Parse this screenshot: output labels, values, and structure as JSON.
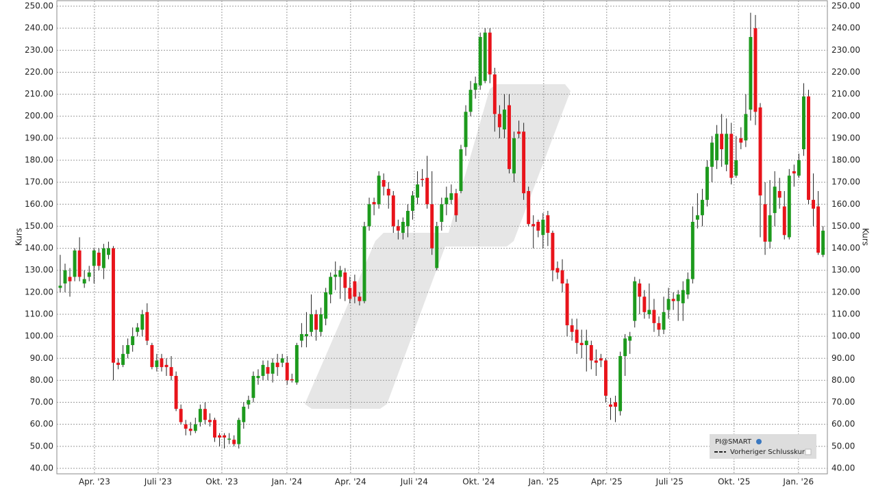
{
  "chart_data": {
    "type": "candlestick",
    "y_label": "Kurs",
    "series_name": "PI@SMART",
    "legend_item": "Vorheriger Schlusskurs",
    "up_color": "#1d9a1d",
    "down_color": "#e8141b",
    "grid": true,
    "xlim": [
      -0.7,
      158.9
    ],
    "xticks": [
      {
        "value": 7.09,
        "label": "Apr. '23"
      },
      {
        "value": 20.28,
        "label": "Juli '23"
      },
      {
        "value": 33.48,
        "label": "Okt. '23"
      },
      {
        "value": 46.95,
        "label": "Jan. '24"
      },
      {
        "value": 60.14,
        "label": "Apr. '24"
      },
      {
        "value": 73.33,
        "label": "Juli '24"
      },
      {
        "value": 86.67,
        "label": "Okt. '24"
      },
      {
        "value": 100.14,
        "label": "Jan. '25"
      },
      {
        "value": 113.19,
        "label": "Apr. '25"
      },
      {
        "value": 126.24,
        "label": "Juli '25"
      },
      {
        "value": 139.57,
        "label": "Okt. '25"
      },
      {
        "value": 152.91,
        "label": "Jan. '26"
      }
    ],
    "ylim": [
      37.5,
      252.5
    ],
    "yticks": [
      {
        "value": 40,
        "label": "40.00"
      },
      {
        "value": 50,
        "label": "50.00"
      },
      {
        "value": 60,
        "label": "60.00"
      },
      {
        "value": 70,
        "label": "70.00"
      },
      {
        "value": 80,
        "label": "80.00"
      },
      {
        "value": 90,
        "label": "90.00"
      },
      {
        "value": 100,
        "label": "100.00"
      },
      {
        "value": 110,
        "label": "110.00"
      },
      {
        "value": 120,
        "label": "120.00"
      },
      {
        "value": 130,
        "label": "130.00"
      },
      {
        "value": 140,
        "label": "140.00"
      },
      {
        "value": 150,
        "label": "150.00"
      },
      {
        "value": 160,
        "label": "160.00"
      },
      {
        "value": 170,
        "label": "170.00"
      },
      {
        "value": 180,
        "label": "180.00"
      },
      {
        "value": 190,
        "label": "190.00"
      },
      {
        "value": 200,
        "label": "200.00"
      },
      {
        "value": 210,
        "label": "210.00"
      },
      {
        "value": 220,
        "label": "220.00"
      },
      {
        "value": 230,
        "label": "230.00"
      },
      {
        "value": 240,
        "label": "240.00"
      },
      {
        "value": 250,
        "label": "250.00"
      }
    ],
    "open": [
      122,
      124,
      127,
      127,
      139,
      124,
      127,
      132,
      138,
      131,
      137,
      140,
      88,
      87,
      92,
      96,
      102,
      103,
      111,
      96,
      86,
      90,
      87,
      86,
      82,
      67,
      60,
      58,
      57,
      61,
      67,
      62,
      62,
      55,
      55,
      53,
      53,
      51,
      61,
      69,
      72,
      81,
      82,
      86,
      83,
      88,
      88,
      88,
      80.5,
      79,
      98,
      100,
      102,
      110,
      102,
      108,
      119,
      127,
      127,
      129,
      122,
      125,
      118,
      116,
      150,
      161,
      160,
      171,
      167,
      164,
      150,
      147,
      150,
      157,
      163,
      171.5,
      172,
      160,
      131,
      152,
      160,
      162,
      165,
      166,
      186,
      202,
      212,
      214,
      216,
      238,
      219,
      201,
      194,
      205,
      174,
      193,
      193,
      166,
      151,
      152,
      146,
      155,
      147,
      131,
      130,
      124,
      105,
      103,
      97,
      96,
      96,
      89,
      90,
      89,
      69,
      70,
      66,
      91,
      98,
      107,
      124,
      118,
      110,
      112,
      106,
      103,
      112,
      117,
      116,
      115,
      119,
      126,
      153,
      155,
      162,
      177,
      180,
      192,
      178,
      192,
      173,
      190,
      189,
      203,
      240,
      204,
      160,
      143,
      156,
      166,
      159,
      145,
      175,
      173,
      185,
      209,
      162,
      159,
      137
    ],
    "high": [
      137,
      133,
      131,
      140,
      145,
      130,
      132,
      140,
      140,
      142,
      143,
      141,
      90,
      96,
      99,
      104,
      106,
      112,
      115,
      97,
      92,
      92,
      90,
      91,
      84,
      69,
      62,
      61,
      63,
      69,
      70,
      65,
      63,
      56,
      56,
      56,
      55,
      63,
      70,
      73,
      84,
      85,
      89,
      89,
      90,
      92,
      92,
      91,
      83,
      97,
      106,
      111,
      119,
      112,
      113,
      122,
      129,
      134,
      132,
      131,
      127,
      128,
      120,
      152,
      163,
      163,
      175,
      174,
      170,
      166,
      153,
      154,
      160,
      166,
      175,
      176,
      182,
      175,
      152,
      163,
      168,
      169,
      167,
      187,
      205,
      216,
      218,
      238,
      240,
      240,
      222,
      205,
      210,
      210,
      193,
      198,
      197,
      168,
      155,
      153,
      156,
      157,
      148,
      134,
      135,
      126,
      108,
      108,
      103,
      103,
      98,
      94,
      92,
      90,
      72,
      73,
      93,
      101,
      102,
      127,
      126,
      121,
      124,
      117,
      109,
      118,
      122,
      120,
      121,
      125,
      129,
      159,
      165,
      167,
      180,
      191,
      196,
      201,
      199,
      197,
      191,
      195,
      210,
      247,
      246,
      206,
      170,
      171,
      175,
      172,
      166,
      176,
      178,
      183,
      215,
      212,
      174,
      166,
      150
    ],
    "low": [
      120,
      120,
      118,
      125,
      125,
      122,
      125,
      124,
      130,
      126,
      135,
      80,
      85,
      86,
      90,
      93,
      100,
      100,
      96,
      85,
      84,
      84,
      82,
      80,
      66,
      60,
      55,
      55,
      56,
      59,
      60,
      59,
      52,
      50,
      49,
      51,
      50,
      49,
      58,
      67,
      70,
      78,
      80,
      80,
      79,
      82,
      86,
      78,
      79,
      78,
      95,
      95,
      100,
      98,
      100,
      105,
      115,
      121,
      117,
      116,
      115,
      115,
      114,
      115,
      148,
      155,
      158,
      164,
      158,
      147,
      144,
      144,
      145,
      153,
      160,
      168,
      158,
      137,
      130,
      148,
      155,
      160,
      152,
      165,
      182,
      200,
      208,
      212,
      215,
      215,
      193,
      190,
      190,
      174,
      170,
      190,
      162,
      150,
      140,
      145,
      140,
      141,
      125,
      126,
      120,
      100,
      98,
      92,
      90,
      84,
      85,
      82,
      86,
      70,
      62,
      61,
      64,
      82,
      92,
      104,
      110,
      108,
      108,
      102,
      100,
      101,
      108,
      112,
      107,
      107,
      117,
      124,
      149,
      150,
      159,
      170,
      176,
      177,
      175,
      169,
      172,
      185,
      186,
      198,
      196,
      145,
      137,
      140,
      150,
      158,
      144,
      144,
      168,
      172,
      182,
      160,
      150,
      137,
      136
    ],
    "close": [
      123,
      130,
      125,
      139,
      127,
      126,
      129,
      139,
      132,
      140,
      140,
      88,
      87,
      92,
      96,
      100,
      104,
      110,
      98,
      86,
      89,
      86,
      86,
      82,
      67,
      61,
      58,
      57,
      60,
      67,
      62,
      61,
      54,
      54,
      54,
      53.5,
      51,
      62,
      68,
      71,
      82,
      82,
      87,
      83,
      88,
      86,
      90,
      80,
      80,
      96,
      101,
      101,
      110,
      103,
      110,
      120,
      127,
      128,
      130,
      122,
      117,
      118,
      116,
      150,
      160,
      160,
      173,
      168,
      164,
      150,
      148,
      152,
      157,
      164,
      169,
      171,
      160,
      140,
      150,
      160,
      163,
      165,
      155,
      185,
      202,
      212,
      215,
      236,
      238,
      219,
      201,
      195,
      203,
      176,
      190,
      192,
      165,
      151,
      150,
      148,
      153,
      147,
      130,
      129,
      124,
      105,
      102,
      97,
      96,
      98,
      89,
      88,
      89,
      73,
      68,
      68,
      91,
      99,
      100,
      125,
      118,
      111,
      112,
      106,
      103,
      111,
      117,
      116,
      119,
      121,
      126,
      152,
      155,
      162,
      177,
      188,
      192,
      185,
      192,
      172,
      180,
      188,
      201,
      236,
      202,
      164,
      143,
      155,
      168,
      163,
      146,
      173,
      174,
      180,
      209,
      162,
      158,
      138,
      148
    ]
  }
}
